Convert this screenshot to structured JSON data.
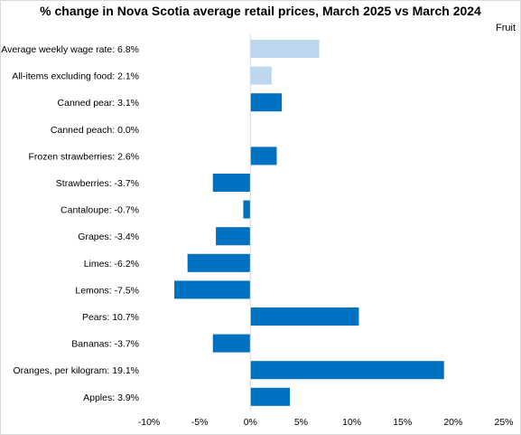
{
  "chart_data": {
    "type": "bar",
    "orientation": "horizontal",
    "title": "% change in Nova Scotia average retail prices, March 2025 vs March 2024",
    "subtitle": "Fruit",
    "categories": [
      "Average weekly wage rate: 6.8%",
      "All-items excluding food: 2.1%",
      "Canned pear: 3.1%",
      "Canned peach: 0.0%",
      "Frozen strawberries: 2.6%",
      "Strawberries: -3.7%",
      "Cantaloupe: -0.7%",
      "Grapes: -3.4%",
      "Limes: -6.2%",
      "Lemons: -7.5%",
      "Pears: 10.7%",
      "Bananas: -3.7%",
      "Oranges, per kilogram: 19.1%",
      "Apples: 3.9%"
    ],
    "values": [
      6.8,
      2.1,
      3.1,
      0.0,
      2.6,
      -3.7,
      -0.7,
      -3.4,
      -6.2,
      -7.5,
      10.7,
      -3.7,
      19.1,
      3.9
    ],
    "bar_colors": [
      "#bdd7ee",
      "#bdd7ee",
      "#0070c0",
      "#0070c0",
      "#0070c0",
      "#0070c0",
      "#0070c0",
      "#0070c0",
      "#0070c0",
      "#0070c0",
      "#0070c0",
      "#0070c0",
      "#0070c0",
      "#0070c0"
    ],
    "x_ticks": [
      "-10%",
      "-5%",
      "0%",
      "5%",
      "10%",
      "15%",
      "20%",
      "25%"
    ],
    "x_tick_values": [
      -10,
      -5,
      0,
      5,
      10,
      15,
      20,
      25
    ],
    "xlim": [
      -10,
      25
    ],
    "grid": false,
    "legend": "none"
  }
}
